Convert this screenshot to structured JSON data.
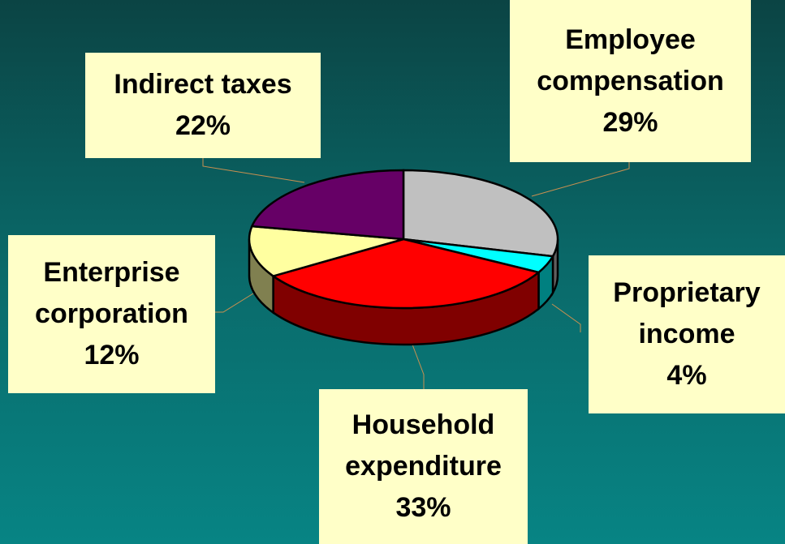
{
  "chart_data": {
    "type": "pie",
    "categories": [
      "Employee compensation",
      "Proprietary income",
      "Household expenditure",
      "Enterprise corporation",
      "Indirect taxes"
    ],
    "values": [
      29,
      4,
      33,
      12,
      22
    ],
    "value_labels": [
      "29%",
      "4%",
      "33%",
      "12%",
      "22%"
    ],
    "colors": [
      "#c0c0c0",
      "#00ffff",
      "#ff0000",
      "#ffffa0",
      "#660066"
    ]
  }
}
